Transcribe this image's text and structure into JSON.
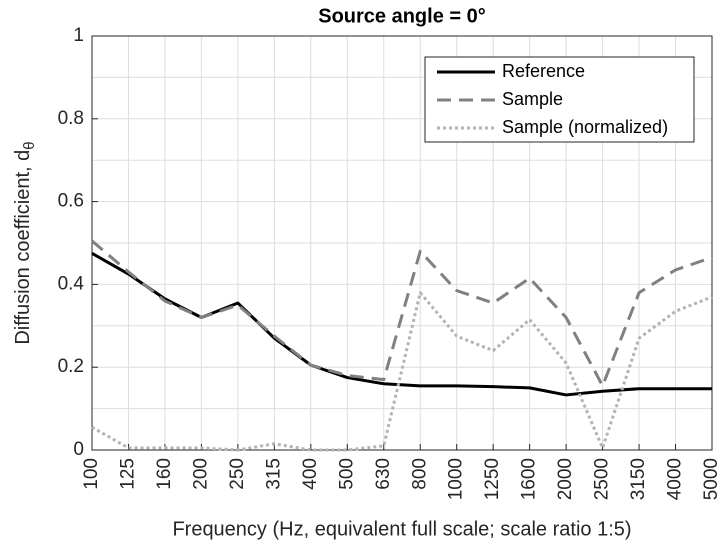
{
  "chart_data": {
    "type": "line",
    "title": "Source angle = 0°",
    "xlabel": "Frequency (Hz, equivalent full scale; scale ratio 1:5)",
    "ylabel": "Diffusion coefficient, d",
    "ylabel_subscript": "θ",
    "categories": [
      "100",
      "125",
      "160",
      "200",
      "250",
      "315",
      "400",
      "500",
      "630",
      "800",
      "1000",
      "1250",
      "1600",
      "2000",
      "2500",
      "3150",
      "4000",
      "5000"
    ],
    "series": [
      {
        "name": "Reference",
        "color": "#000000",
        "dash": "solid",
        "values": [
          0.475,
          0.425,
          0.365,
          0.32,
          0.355,
          0.27,
          0.205,
          0.175,
          0.16,
          0.155,
          0.155,
          0.153,
          0.15,
          0.133,
          0.142,
          0.148,
          0.148,
          0.148
        ]
      },
      {
        "name": "Sample",
        "color": "#808080",
        "dash": "dashed",
        "values": [
          0.505,
          0.43,
          0.36,
          0.32,
          0.35,
          0.275,
          0.205,
          0.18,
          0.17,
          0.48,
          0.385,
          0.355,
          0.415,
          0.32,
          0.155,
          0.38,
          0.435,
          0.465
        ]
      },
      {
        "name": "Sample (normalized)",
        "color": "#b3b3b3",
        "dash": "dotted",
        "values": [
          0.055,
          0.005,
          0.005,
          0.005,
          0.0,
          0.015,
          0.0,
          0.0,
          0.01,
          0.38,
          0.275,
          0.24,
          0.315,
          0.21,
          0.005,
          0.27,
          0.335,
          0.37
        ]
      }
    ],
    "ylim": [
      0,
      1
    ],
    "yticks": [
      0,
      0.2,
      0.4,
      0.6,
      0.8,
      1
    ],
    "minor_yticks": [
      0.1,
      0.3,
      0.5,
      0.7,
      0.9
    ],
    "grid": true,
    "legend": "upper right"
  }
}
